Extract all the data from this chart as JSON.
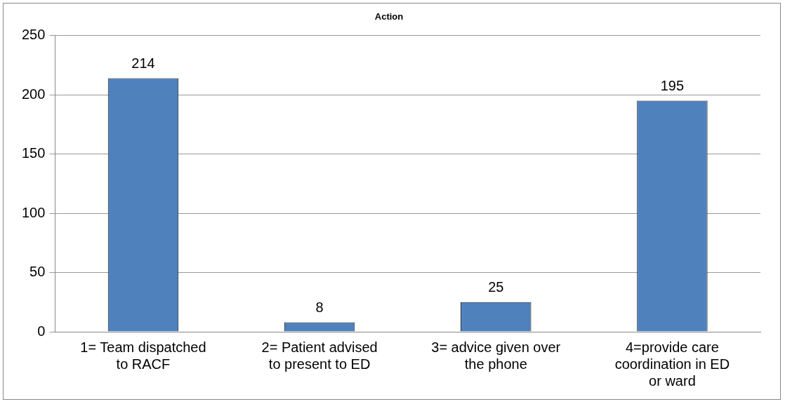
{
  "chart_data": {
    "type": "bar",
    "title": "Action",
    "categories": [
      "1= Team dispatched to RACF",
      "2= Patient advised to present to ED",
      "3= advice given over the phone",
      "4=provide care coordination in ED or ward"
    ],
    "values": [
      214,
      8,
      25,
      195
    ],
    "color": "#4f81bd",
    "ylim": [
      0,
      250
    ],
    "yticks": [
      0,
      50,
      100,
      150,
      200,
      250
    ],
    "grid": "y",
    "legend": false,
    "data_labels": true
  }
}
